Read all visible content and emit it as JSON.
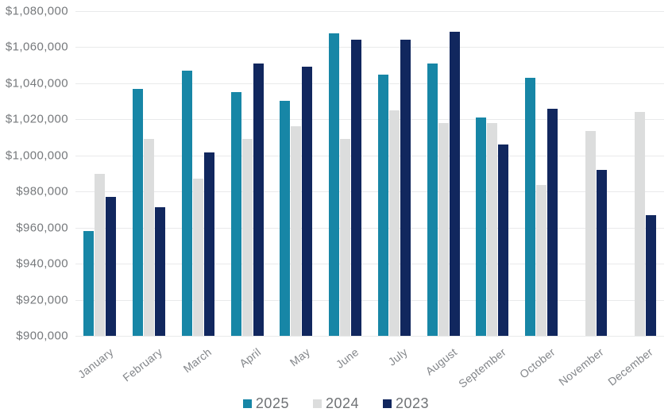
{
  "chart_data": {
    "type": "bar",
    "title": "",
    "xlabel": "",
    "ylabel": "",
    "categories": [
      "January",
      "February",
      "March",
      "April",
      "May",
      "June",
      "July",
      "August",
      "September",
      "October",
      "November",
      "December"
    ],
    "series": [
      {
        "name": "2025",
        "color": "#1786a6",
        "values": [
          958000,
          1037000,
          1047000,
          1035000,
          1030500,
          1067500,
          1045000,
          1051000,
          1021000,
          1043000,
          null,
          null
        ]
      },
      {
        "name": "2024",
        "color": "#dcdddd",
        "values": [
          990000,
          1009000,
          987000,
          1009000,
          1016000,
          1009000,
          1025000,
          1018000,
          1018000,
          983500,
          1013500,
          1024000
        ]
      },
      {
        "name": "2023",
        "color": "#11275e",
        "values": [
          977000,
          971500,
          1001500,
          1051000,
          1049000,
          1064000,
          1064000,
          1068500,
          1006000,
          1026000,
          992000,
          967000
        ]
      }
    ],
    "ylim": [
      900000,
      1080000
    ],
    "ytick_step": 20000,
    "ytick_labels": [
      "$1,080,000",
      "$1,060,000",
      "$1,040,000",
      "$1,020,000",
      "$1,000,000",
      "$980,000",
      "$960,000",
      "$940,000",
      "$920,000",
      "$900,000"
    ],
    "grid": "horizontal",
    "gridline_color": "#e9eaeb",
    "legend_position": "bottom"
  },
  "legend": {
    "items": [
      {
        "label": "2025",
        "color": "#1786a6"
      },
      {
        "label": "2024",
        "color": "#dcdddd"
      },
      {
        "label": "2023",
        "color": "#11275e"
      }
    ]
  },
  "colors": {
    "background": "#ffffff",
    "axis_text": "#76797c",
    "month_text": "#83868a",
    "legend_text": "#6f7275"
  }
}
